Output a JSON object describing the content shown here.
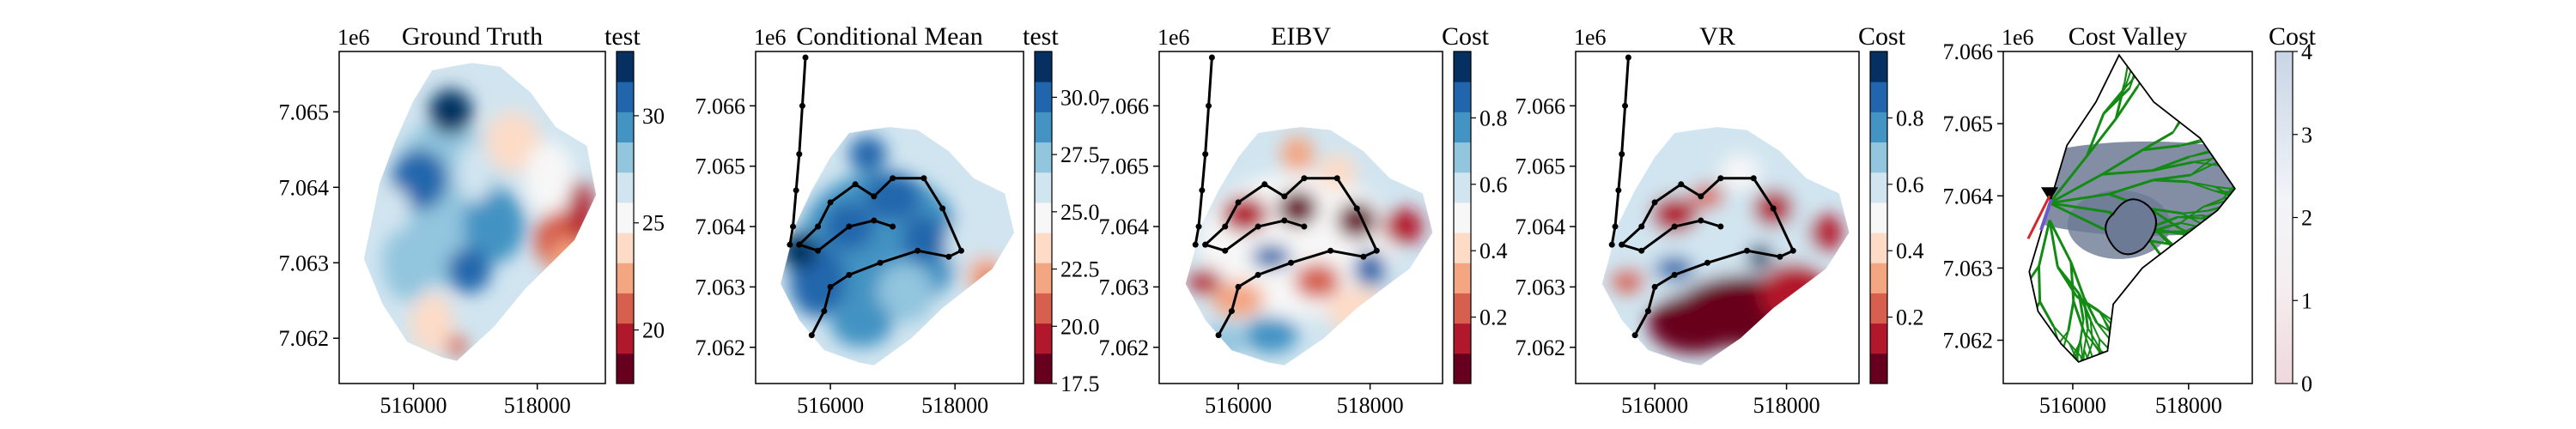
{
  "chart_data": [
    {
      "type": "heatmap",
      "title": "Ground Truth",
      "colorbar_label": "test",
      "colorbar_ticks": [
        "20",
        "25",
        "30"
      ],
      "x_ticks": [
        "516000",
        "518000"
      ],
      "y_ticks": [
        "7.062",
        "7.063",
        "7.064",
        "7.065"
      ],
      "y_offset_label": "1e6",
      "colorbar_range": [
        17.5,
        33
      ],
      "colormap": "RdBu"
    },
    {
      "type": "heatmap",
      "title": "Conditional Mean",
      "colorbar_label": "test",
      "colorbar_ticks": [
        "17.5",
        "20.0",
        "22.5",
        "25.0",
        "27.5",
        "30.0"
      ],
      "x_ticks": [
        "516000",
        "518000"
      ],
      "y_ticks": [
        "7.062",
        "7.063",
        "7.064",
        "7.065",
        "7.066"
      ],
      "y_offset_label": "1e6",
      "colorbar_range": [
        17.5,
        32
      ],
      "colormap": "RdBu",
      "path_overlay": true
    },
    {
      "type": "heatmap",
      "title": "EIBV",
      "colorbar_label": "Cost",
      "colorbar_ticks": [
        "0.2",
        "0.4",
        "0.6",
        "0.8"
      ],
      "x_ticks": [
        "516000",
        "518000"
      ],
      "y_ticks": [
        "7.062",
        "7.063",
        "7.064",
        "7.065",
        "7.066"
      ],
      "y_offset_label": "1e6",
      "colorbar_range": [
        0,
        1
      ],
      "colormap": "RdBu",
      "path_overlay": true
    },
    {
      "type": "heatmap",
      "title": "VR",
      "colorbar_label": "Cost",
      "colorbar_ticks": [
        "0.2",
        "0.4",
        "0.6",
        "0.8"
      ],
      "x_ticks": [
        "516000",
        "518000"
      ],
      "y_ticks": [
        "7.062",
        "7.063",
        "7.064",
        "7.065",
        "7.066"
      ],
      "y_offset_label": "1e6",
      "colorbar_range": [
        0,
        1
      ],
      "colormap": "RdBu",
      "path_overlay": true
    },
    {
      "type": "heatmap",
      "title": "Cost Valley",
      "colorbar_label": "Cost",
      "colorbar_ticks": [
        "0",
        "1",
        "2",
        "3",
        "4"
      ],
      "x_ticks": [
        "516000",
        "518000"
      ],
      "y_ticks": [
        "7.062",
        "7.063",
        "7.064",
        "7.065",
        "7.066"
      ],
      "y_offset_label": "1e6",
      "colorbar_range": [
        0,
        4
      ],
      "colormap": "continuous-light",
      "tree_overlay": true
    }
  ],
  "colors": {
    "dark_red": "#67001f",
    "red": "#b2182b",
    "light_red": "#d6604d",
    "salmon": "#f4a582",
    "peach": "#fddbc7",
    "white": "#f7f7f7",
    "light_blue": "#d1e5f0",
    "sky": "#92c5de",
    "blue": "#4393c3",
    "mid_blue": "#2166ac",
    "navy": "#053061",
    "tree_green": "#138a13",
    "cost_gray": "#6d7a95",
    "path_black": "#000000"
  }
}
